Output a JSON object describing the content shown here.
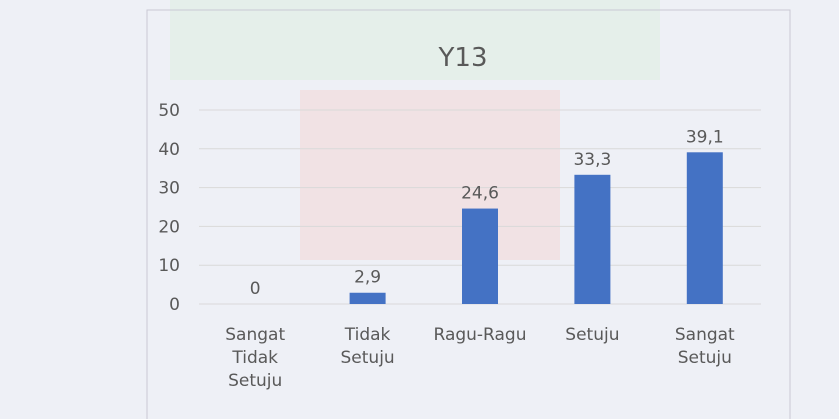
{
  "chart_data": {
    "type": "bar",
    "title": "Y13",
    "categories": [
      "Sangat Tidak Setuju",
      "Tidak Setuju",
      "Ragu-Ragu",
      "Setuju",
      "Sangat Setuju"
    ],
    "values": [
      0,
      2.9,
      24.6,
      33.3,
      39.1
    ],
    "value_labels": [
      "0",
      "2,9",
      "24,6",
      "33,3",
      "39,1"
    ],
    "color": "#4472c4",
    "ylim": [
      0,
      50
    ],
    "yticks": [
      0,
      10,
      20,
      30,
      40,
      50
    ],
    "grid": true
  }
}
